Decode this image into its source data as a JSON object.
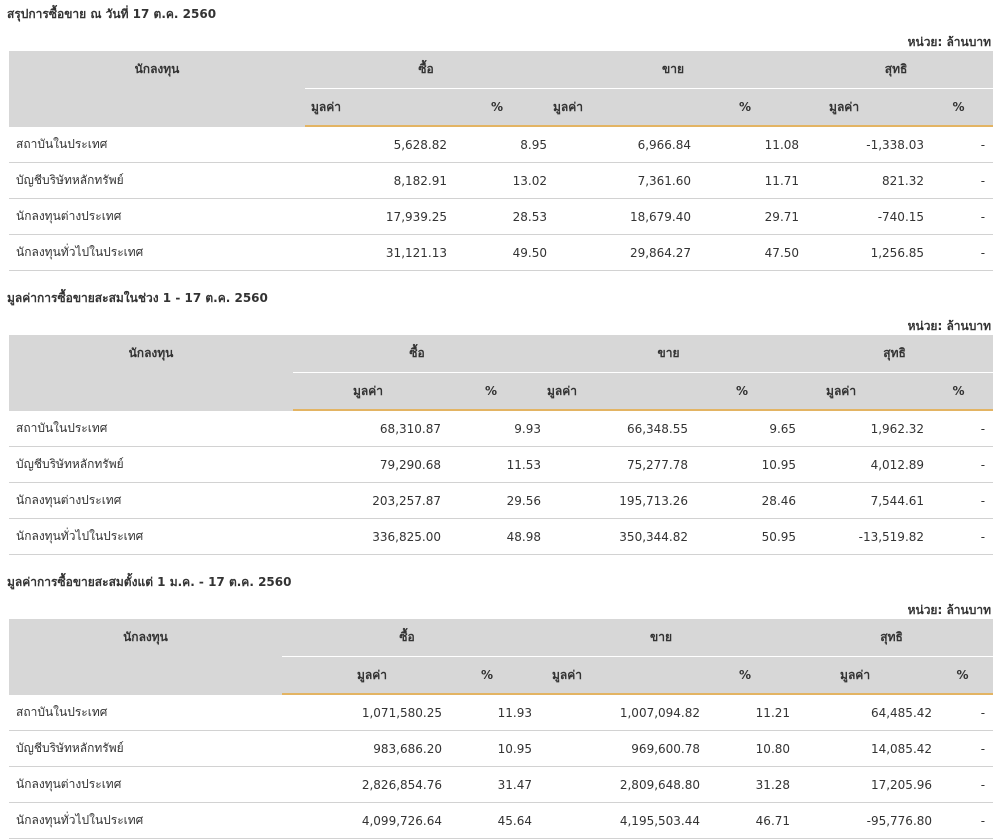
{
  "unit_label": "หน่วย: ล้านบาท",
  "headers": {
    "investor": "นักลงทุน",
    "buy": "ซื้อ",
    "sell": "ขาย",
    "net": "สุทธิ",
    "value": "มูลค่า",
    "percent": "%"
  },
  "colors": {
    "positive": "#3a8a2a",
    "negative": "#c0272d",
    "accent_line": "#e3b463",
    "header_bg": "#d7d7d7"
  },
  "sections": [
    {
      "title": "สรุปการซื้อขาย ณ วันที่ 17 ต.ค. 2560",
      "rows": [
        {
          "investor": "สถาบันในประเทศ",
          "buy_value": "5,628.82",
          "buy_pct": "8.95",
          "sell_value": "6,966.84",
          "sell_pct": "11.08",
          "net_value": "-1,338.03",
          "net_pct": "-"
        },
        {
          "investor": "บัญชีบริษัทหลักทรัพย์",
          "buy_value": "8,182.91",
          "buy_pct": "13.02",
          "sell_value": "7,361.60",
          "sell_pct": "11.71",
          "net_value": "821.32",
          "net_pct": "-"
        },
        {
          "investor": "นักลงทุนต่างประเทศ",
          "buy_value": "17,939.25",
          "buy_pct": "28.53",
          "sell_value": "18,679.40",
          "sell_pct": "29.71",
          "net_value": "-740.15",
          "net_pct": "-"
        },
        {
          "investor": "นักลงทุนทั่วไปในประเทศ",
          "buy_value": "31,121.13",
          "buy_pct": "49.50",
          "sell_value": "29,864.27",
          "sell_pct": "47.50",
          "net_value": "1,256.85",
          "net_pct": "-"
        }
      ]
    },
    {
      "title": "มูลค่าการซื้อขายสะสมในช่วง 1 - 17 ต.ค. 2560",
      "rows": [
        {
          "investor": "สถาบันในประเทศ",
          "buy_value": "68,310.87",
          "buy_pct": "9.93",
          "sell_value": "66,348.55",
          "sell_pct": "9.65",
          "net_value": "1,962.32",
          "net_pct": "-"
        },
        {
          "investor": "บัญชีบริษัทหลักทรัพย์",
          "buy_value": "79,290.68",
          "buy_pct": "11.53",
          "sell_value": "75,277.78",
          "sell_pct": "10.95",
          "net_value": "4,012.89",
          "net_pct": "-"
        },
        {
          "investor": "นักลงทุนต่างประเทศ",
          "buy_value": "203,257.87",
          "buy_pct": "29.56",
          "sell_value": "195,713.26",
          "sell_pct": "28.46",
          "net_value": "7,544.61",
          "net_pct": "-"
        },
        {
          "investor": "นักลงทุนทั่วไปในประเทศ",
          "buy_value": "336,825.00",
          "buy_pct": "48.98",
          "sell_value": "350,344.82",
          "sell_pct": "50.95",
          "net_value": "-13,519.82",
          "net_pct": "-"
        }
      ]
    },
    {
      "title": "มูลค่าการซื้อขายสะสมตั้งแต่ 1 ม.ค. - 17 ต.ค. 2560",
      "rows": [
        {
          "investor": "สถาบันในประเทศ",
          "buy_value": "1,071,580.25",
          "buy_pct": "11.93",
          "sell_value": "1,007,094.82",
          "sell_pct": "11.21",
          "net_value": "64,485.42",
          "net_pct": "-"
        },
        {
          "investor": "บัญชีบริษัทหลักทรัพย์",
          "buy_value": "983,686.20",
          "buy_pct": "10.95",
          "sell_value": "969,600.78",
          "sell_pct": "10.80",
          "net_value": "14,085.42",
          "net_pct": "-"
        },
        {
          "investor": "นักลงทุนต่างประเทศ",
          "buy_value": "2,826,854.76",
          "buy_pct": "31.47",
          "sell_value": "2,809,648.80",
          "sell_pct": "31.28",
          "net_value": "17,205.96",
          "net_pct": "-"
        },
        {
          "investor": "นักลงทุนทั่วไปในประเทศ",
          "buy_value": "4,099,726.64",
          "buy_pct": "45.64",
          "sell_value": "4,195,503.44",
          "sell_pct": "46.71",
          "net_value": "-95,776.80",
          "net_pct": "-"
        }
      ]
    }
  ]
}
